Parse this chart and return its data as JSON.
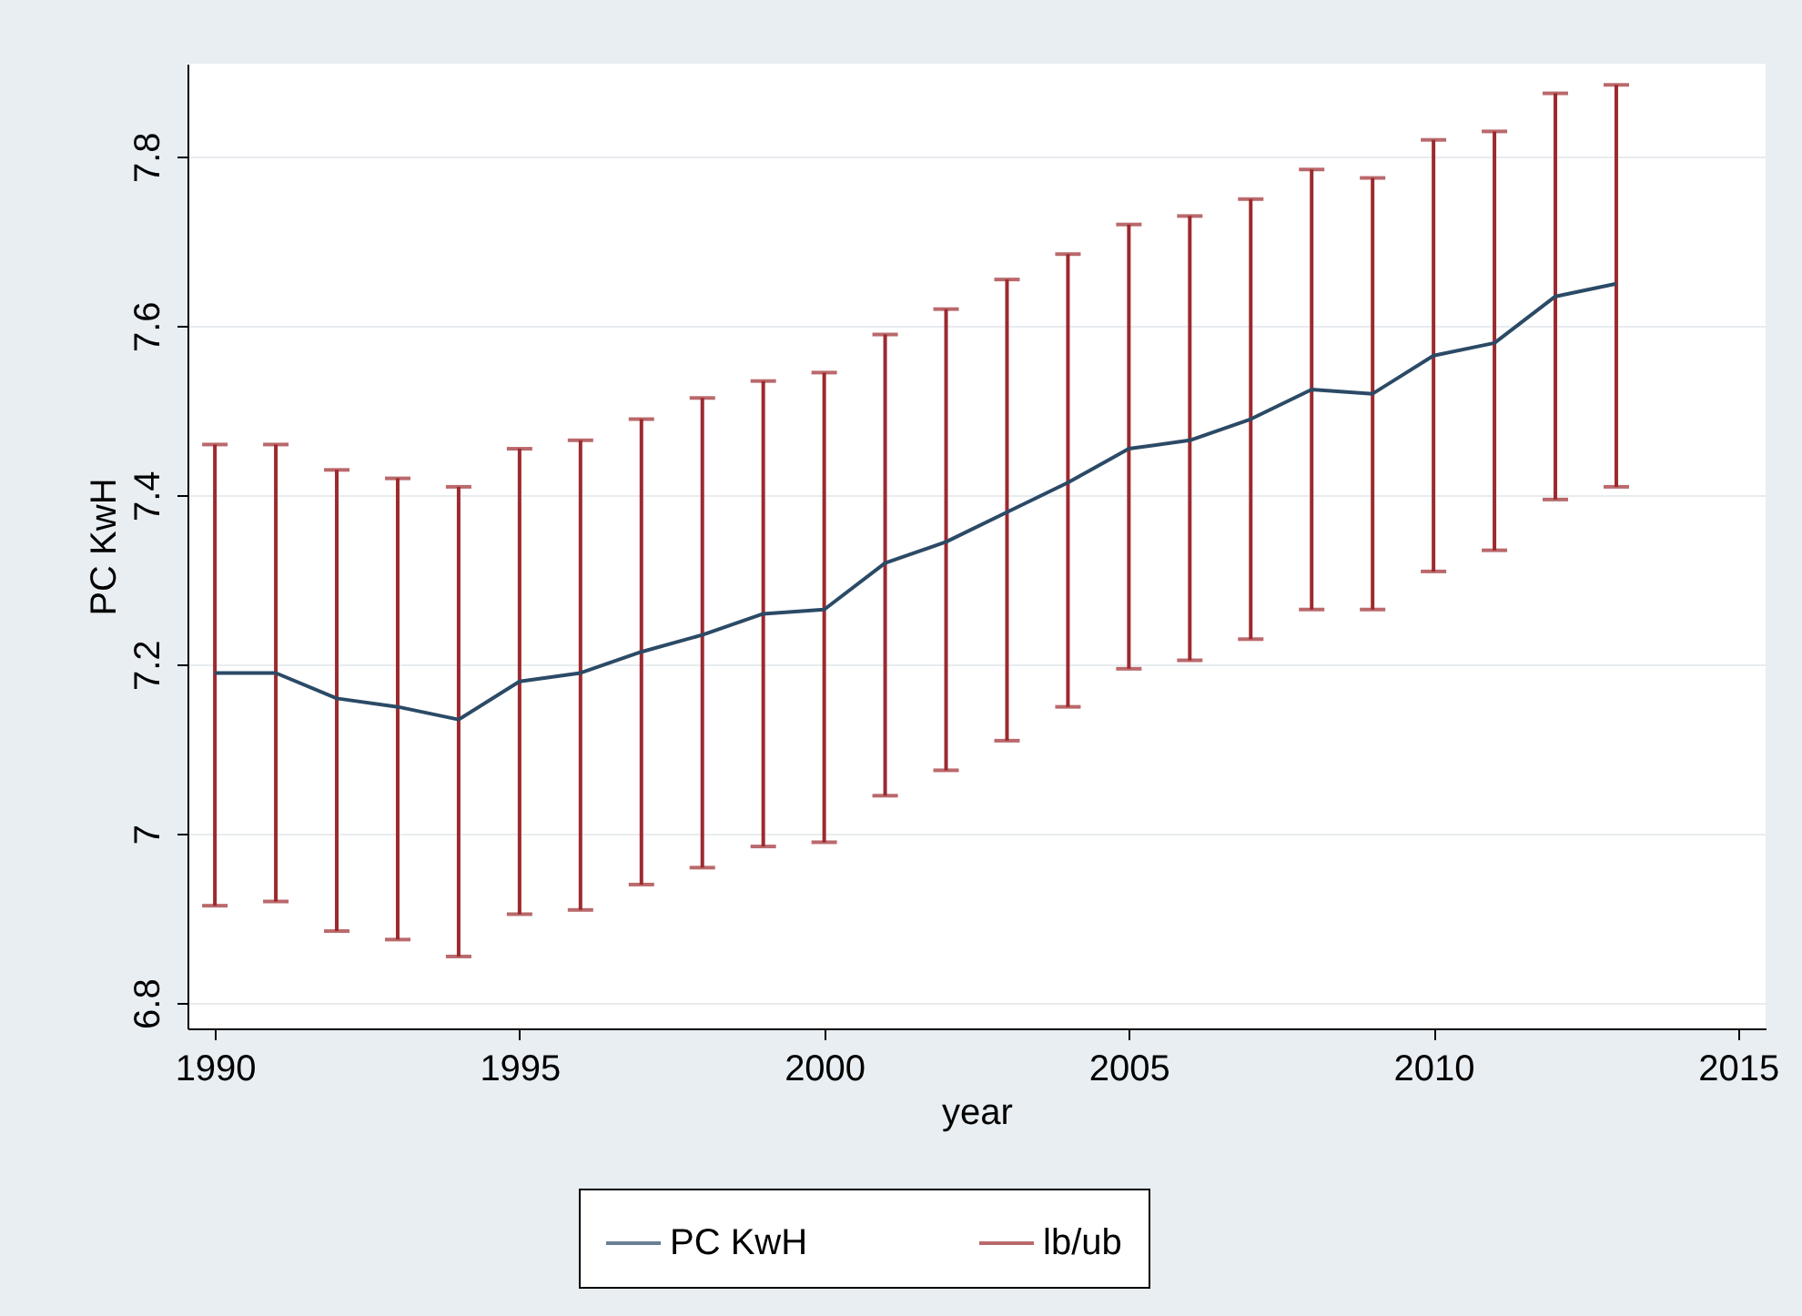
{
  "chart_data": {
    "type": "line",
    "xlabel": "year",
    "ylabel": "PC KwH",
    "x": [
      1990,
      1991,
      1992,
      1993,
      1994,
      1995,
      1996,
      1997,
      1998,
      1999,
      2000,
      2001,
      2002,
      2003,
      2004,
      2005,
      2006,
      2007,
      2008,
      2009,
      2010,
      2011,
      2012,
      2013
    ],
    "xlim": [
      1989.55,
      2015.45
    ],
    "xticks": [
      1990,
      1995,
      2000,
      2005,
      2010,
      2015
    ],
    "ylim": [
      6.77,
      7.91
    ],
    "yticks": [
      6.8,
      {
        "value": 7,
        "label": "7"
      },
      7.2,
      7.4,
      7.6,
      7.8
    ],
    "grid": "y",
    "legend": "bottom",
    "series": [
      {
        "name": "PC KwH",
        "type": "line",
        "color": "#2b4a66",
        "values": [
          7.19,
          7.19,
          7.16,
          7.15,
          7.135,
          7.18,
          7.19,
          7.215,
          7.235,
          7.26,
          7.265,
          7.32,
          7.345,
          7.38,
          7.415,
          7.455,
          7.465,
          7.49,
          7.525,
          7.52,
          7.565,
          7.58,
          7.635,
          7.65
        ],
        "errors": [
          [
            6.915,
            7.46
          ],
          [
            6.92,
            7.46
          ],
          [
            6.885,
            7.43
          ],
          [
            6.875,
            7.42
          ],
          [
            6.855,
            7.41
          ],
          [
            6.905,
            7.455
          ],
          [
            6.91,
            7.465
          ],
          [
            6.94,
            7.49
          ],
          [
            6.96,
            7.515
          ],
          [
            6.985,
            7.535
          ],
          [
            6.99,
            7.545
          ],
          [
            7.045,
            7.59
          ],
          [
            7.075,
            7.62
          ],
          [
            7.11,
            7.655
          ],
          [
            7.15,
            7.685
          ],
          [
            7.195,
            7.72
          ],
          [
            7.205,
            7.73
          ],
          [
            7.23,
            7.75
          ],
          [
            7.265,
            7.785
          ],
          [
            7.265,
            7.775
          ],
          [
            7.31,
            7.82
          ],
          [
            7.335,
            7.83
          ],
          [
            7.395,
            7.875
          ],
          [
            7.41,
            7.885
          ]
        ]
      },
      {
        "name": "lb/ub",
        "type": "line",
        "color": "#9c2a2e",
        "values": [
          null,
          null,
          null,
          null,
          null,
          null,
          null,
          null,
          null,
          null,
          null,
          null,
          null,
          null,
          null,
          null,
          null,
          null,
          null,
          null,
          null,
          null,
          null,
          null
        ]
      }
    ]
  }
}
